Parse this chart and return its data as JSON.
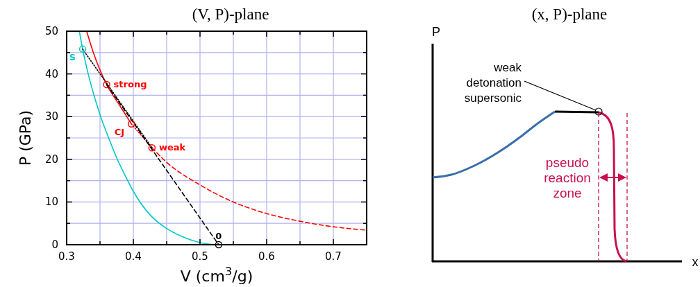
{
  "chart_data": [
    {
      "type": "line",
      "title": "(V, P)-plane",
      "xlabel": "V (cm$^{3}$/g)",
      "ylabel": "P (GPa)",
      "xlim": [
        0.3,
        0.75
      ],
      "ylim": [
        0,
        50
      ],
      "xticks": [
        0.3,
        {
          "value": 0.35,
          "label": null
        },
        0.4,
        {
          "value": 0.45,
          "label": null
        },
        0.5,
        {
          "value": 0.55,
          "label": null
        },
        0.6,
        {
          "value": 0.65,
          "label": null
        },
        0.7,
        {
          "value": 0.75,
          "label": null
        }
      ],
      "yticks": [
        0,
        {
          "value": 5,
          "label": null
        },
        10,
        {
          "value": 15,
          "label": null
        },
        20,
        {
          "value": 25,
          "label": null
        },
        30,
        {
          "value": 35,
          "label": null
        },
        40,
        {
          "value": 45,
          "label": null
        },
        50
      ],
      "grid": true,
      "series": [
        {
          "color": "#00c8c8",
          "line_style": "solid",
          "x": [
            0.319,
            0.324,
            0.33,
            0.34,
            0.351,
            0.363,
            0.376,
            0.39,
            0.4,
            0.425,
            0.45,
            0.475,
            0.5,
            0.525
          ],
          "values": [
            50,
            45.8,
            41.5,
            35.5,
            30,
            25,
            20,
            15.5,
            12.5,
            7,
            3.8,
            1.8,
            0.5,
            0
          ]
        },
        {
          "color": "#ff0000",
          "line_style": "solid",
          "x": [
            0.33,
            0.34,
            0.36,
            0.38,
            0.397
          ],
          "values": [
            50,
            45,
            37.5,
            32.5,
            28.3
          ]
        },
        {
          "color": "#ff0000",
          "line_style": "dotted",
          "x": [
            0.397,
            0.428
          ],
          "values": [
            28.3,
            22.7
          ]
        },
        {
          "color": "#ff0000",
          "line_style": "dashed",
          "x": [
            0.428,
            0.45,
            0.5,
            0.55,
            0.6,
            0.65,
            0.7,
            0.75
          ],
          "values": [
            22.7,
            19.3,
            14,
            10,
            7.3,
            5.5,
            4.2,
            3.4
          ]
        },
        {
          "color": "#000000",
          "line_style": "dotted",
          "x": [
            0.324,
            0.428
          ],
          "values": [
            45.8,
            22.7
          ]
        },
        {
          "color": "#000000",
          "line_style": "dashed",
          "x": [
            0.36,
            0.528
          ],
          "values": [
            37.5,
            0
          ]
        },
        {
          "type": "scatter",
          "color": "#00c8c8",
          "marker": "circle",
          "x": [
            0.324
          ],
          "values": [
            45.8
          ]
        },
        {
          "type": "scatter",
          "color": "#ff0000",
          "marker": "circle",
          "x": [
            0.36,
            0.397,
            0.428
          ],
          "values": [
            37.5,
            28.3,
            22.7
          ]
        },
        {
          "type": "scatter",
          "color": "#000000",
          "marker": "circle",
          "x": [
            0.528
          ],
          "values": [
            0
          ]
        }
      ],
      "annotations": [
        {
          "text": "S",
          "x": 0.324,
          "y": 45.8
        },
        {
          "text": "strong",
          "x": 0.36,
          "y": 37.5
        },
        {
          "text": "CJ",
          "x": 0.397,
          "y": 28.3
        },
        {
          "text": "weak",
          "x": 0.428,
          "y": 22.7
        },
        {
          "text": "0",
          "x": 0.528,
          "y": 0
        }
      ]
    },
    {
      "type": "other",
      "title": "(x, P)-plane",
      "xlabel": "x",
      "ylabel": "P",
      "annotations": [
        "weak detonation supersonic",
        "pseudo reaction zone"
      ]
    }
  ]
}
